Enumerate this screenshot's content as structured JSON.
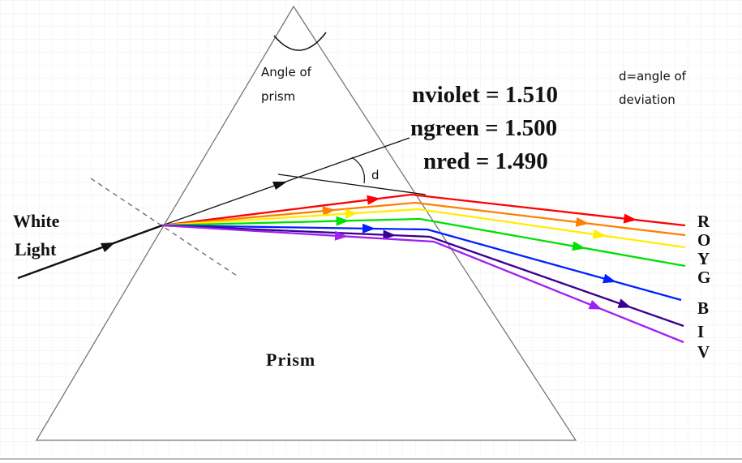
{
  "labels": {
    "angle_of_prism": [
      "Angle of",
      "prism"
    ],
    "deviation_note": [
      "d=angle of",
      "deviation"
    ],
    "d": "d",
    "white_light": [
      "White",
      "Light"
    ],
    "prism": "Prism"
  },
  "refractive_indices": [
    "nviolet = 1.510",
    "ngreen = 1.500",
    "nred = 1.490"
  ],
  "spectrum": [
    {
      "letter": "R",
      "color": "#ff0000"
    },
    {
      "letter": "O",
      "color": "#ff8000"
    },
    {
      "letter": "Y",
      "color": "#ffee00"
    },
    {
      "letter": "G",
      "color": "#00e000"
    },
    {
      "letter": "B",
      "color": "#0020ff"
    },
    {
      "letter": "I",
      "color": "#3a0090"
    },
    {
      "letter": "V",
      "color": "#a020f0"
    }
  ]
}
